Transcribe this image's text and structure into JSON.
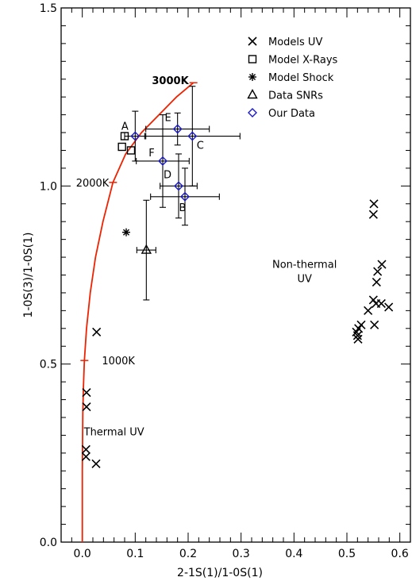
{
  "chart_data": {
    "type": "scatter",
    "xlabel": "2-1S(1)/1-0S(1)",
    "ylabel": "1-0S(3)/1-0S(1)",
    "xlim": [
      -0.04,
      0.62
    ],
    "ylim": [
      0,
      1.5
    ],
    "x_ticks": [
      0.0,
      0.1,
      0.2,
      0.3,
      0.4,
      0.5,
      0.6
    ],
    "x_tick_labels": [
      "0.0",
      "0.1",
      "0.2",
      "0.3",
      "0.4",
      "0.5",
      "0.6"
    ],
    "y_ticks": [
      0.0,
      0.5,
      1.0,
      1.5
    ],
    "y_tick_labels": [
      "0.0",
      "0.5",
      "1.0",
      "1.5"
    ],
    "grid": false,
    "legend_position": "top-right",
    "legend": [
      {
        "marker": "x",
        "label": "Models UV"
      },
      {
        "marker": "square",
        "label": "Model X-Rays"
      },
      {
        "marker": "asterisk",
        "label": "Model Shock"
      },
      {
        "marker": "triangle",
        "label": "Data SNRs"
      },
      {
        "marker": "diamond",
        "label": "Our Data",
        "color": "#1a1acc"
      }
    ],
    "thermal_curve": {
      "color": "#ee2200",
      "points": [
        [
          0.0,
          0.0
        ],
        [
          0.0,
          0.2
        ],
        [
          0.001,
          0.36
        ],
        [
          0.002,
          0.43
        ],
        [
          0.004,
          0.51
        ],
        [
          0.008,
          0.6
        ],
        [
          0.015,
          0.7
        ],
        [
          0.025,
          0.8
        ],
        [
          0.039,
          0.9
        ],
        [
          0.058,
          1.01
        ],
        [
          0.082,
          1.09
        ],
        [
          0.112,
          1.15
        ],
        [
          0.145,
          1.2
        ],
        [
          0.178,
          1.25
        ],
        [
          0.21,
          1.29
        ]
      ],
      "temperature_marks": [
        {
          "label": "1000K",
          "x": 0.004,
          "y": 0.51
        },
        {
          "label": "2000K",
          "x": 0.058,
          "y": 1.01
        },
        {
          "label": "3000K",
          "x": 0.21,
          "y": 1.29
        }
      ]
    },
    "series": [
      {
        "name": "Models UV",
        "marker": "x",
        "points": [
          [
            0.027,
            0.59
          ],
          [
            0.008,
            0.42
          ],
          [
            0.008,
            0.38
          ],
          [
            0.007,
            0.26
          ],
          [
            0.007,
            0.24
          ],
          [
            0.026,
            0.22
          ],
          [
            0.551,
            0.95
          ],
          [
            0.55,
            0.92
          ],
          [
            0.566,
            0.78
          ],
          [
            0.558,
            0.76
          ],
          [
            0.556,
            0.73
          ],
          [
            0.55,
            0.68
          ],
          [
            0.555,
            0.67
          ],
          [
            0.565,
            0.67
          ],
          [
            0.579,
            0.66
          ],
          [
            0.54,
            0.65
          ],
          [
            0.552,
            0.61
          ],
          [
            0.527,
            0.61
          ],
          [
            0.522,
            0.6
          ],
          [
            0.518,
            0.59
          ],
          [
            0.52,
            0.58
          ],
          [
            0.521,
            0.57
          ]
        ]
      },
      {
        "name": "Model X-Rays",
        "marker": "square",
        "points": [
          [
            0.08,
            1.14
          ],
          [
            0.075,
            1.11
          ],
          [
            0.092,
            1.1
          ]
        ]
      },
      {
        "name": "Model Shock",
        "marker": "asterisk",
        "points": [
          [
            0.083,
            0.87
          ]
        ]
      },
      {
        "name": "Data SNRs",
        "marker": "triangle",
        "points": [
          {
            "x": 0.121,
            "y": 0.82,
            "xerr": 0.018,
            "yerr": 0.14
          }
        ]
      },
      {
        "name": "Our Data",
        "marker": "diamond",
        "color": "#1a1acc",
        "points": [
          {
            "label": "A",
            "x": 0.1,
            "y": 1.14,
            "xerr": 0.02,
            "yerr": 0.07
          },
          {
            "label": "E",
            "x": 0.18,
            "y": 1.16,
            "xerr": 0.06,
            "yerr": 0.045
          },
          {
            "label": "C",
            "x": 0.208,
            "y": 1.14,
            "xerr": 0.09,
            "yerr": 0.14
          },
          {
            "label": "F",
            "x": 0.152,
            "y": 1.07,
            "xerr": 0.05,
            "yerr": 0.13
          },
          {
            "label": "D",
            "x": 0.182,
            "y": 1.0,
            "xerr": 0.035,
            "yerr": 0.09
          },
          {
            "label": "B",
            "x": 0.194,
            "y": 0.97,
            "xerr": 0.065,
            "yerr": 0.08
          }
        ]
      }
    ],
    "annotations": [
      {
        "text": "Non-thermal",
        "x": 0.42,
        "y": 0.77
      },
      {
        "text": "UV",
        "x": 0.42,
        "y": 0.73
      },
      {
        "text": "Thermal UV",
        "x": 0.06,
        "y": 0.3
      }
    ]
  }
}
